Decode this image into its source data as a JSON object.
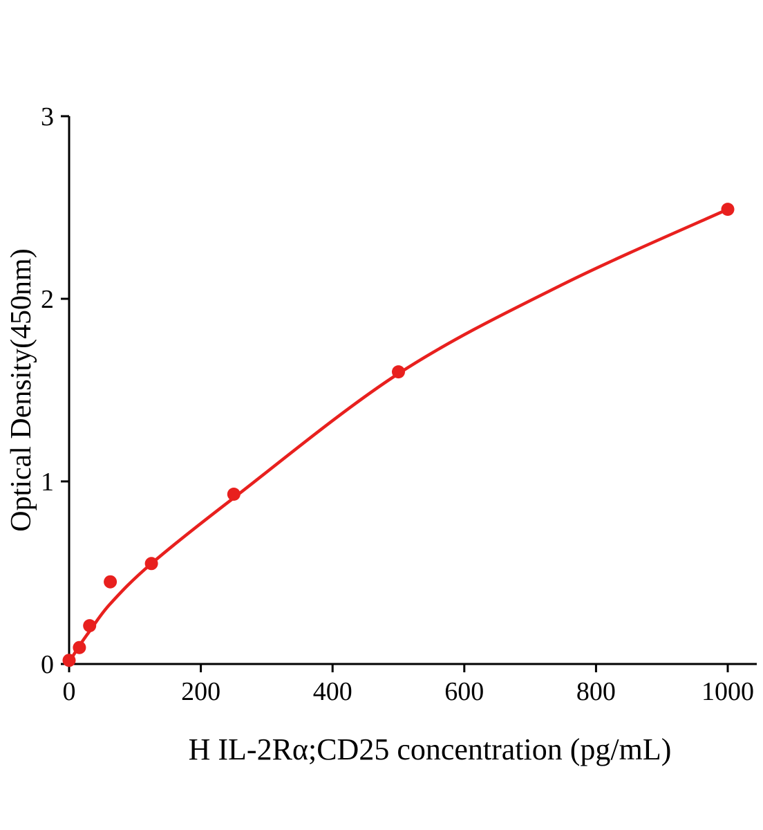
{
  "chart_data": {
    "type": "scatter",
    "title": "",
    "xlabel": "H IL-2Rα;CD25 concentration (pg/mL)",
    "ylabel": "Optical Density(450nm)",
    "xlim": [
      0,
      1044
    ],
    "ylim": [
      0,
      3
    ],
    "x_ticks": [
      0,
      200,
      400,
      600,
      800,
      1000
    ],
    "y_ticks": [
      0,
      1,
      2,
      3
    ],
    "grid": false,
    "legend": false,
    "colors": {
      "accent": "#e8201e",
      "axis": "#000000"
    },
    "series": [
      {
        "name": "standard-points",
        "x": [
          0,
          15.6,
          31.2,
          62.5,
          125,
          250,
          500,
          1000
        ],
        "y": [
          0.02,
          0.09,
          0.21,
          0.45,
          0.55,
          0.93,
          1.6,
          2.49
        ]
      }
    ],
    "trend_line": {
      "name": "fitted-curve",
      "x": [
        0,
        15.6,
        31.2,
        62.5,
        125,
        250,
        500,
        750,
        1000
      ],
      "y": [
        0.01,
        0.1,
        0.18,
        0.33,
        0.55,
        0.91,
        1.59,
        2.08,
        2.49
      ]
    }
  }
}
